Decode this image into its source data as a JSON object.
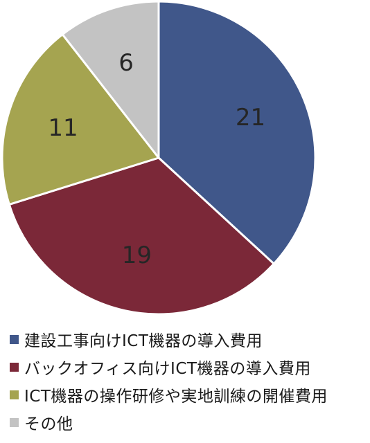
{
  "chart_data": {
    "type": "pie",
    "categories": [
      "建設工事向けICT機器の導入費用",
      "バックオフィス向けICT機器の導入費用",
      "ICT機器の操作研修や実地訓練の開催費用",
      "その他"
    ],
    "values": [
      21,
      19,
      11,
      6
    ],
    "data_labels": [
      "21",
      "19",
      "11",
      "6"
    ],
    "colors": [
      "#40578a",
      "#7b2838",
      "#a5a450",
      "#c3c3c3"
    ],
    "start_angle": "12 o'clock",
    "direction": "clockwise",
    "legend_position": "bottom"
  }
}
